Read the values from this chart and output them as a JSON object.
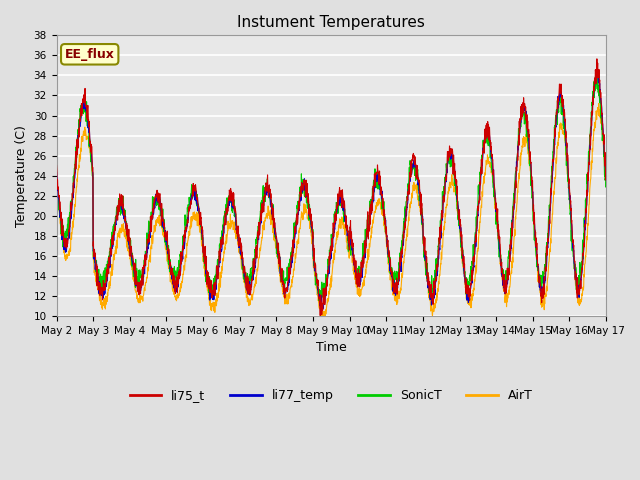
{
  "title": "Instument Temperatures",
  "xlabel": "Time",
  "ylabel": "Temperature (C)",
  "ylim": [
    10,
    38
  ],
  "yticks": [
    10,
    12,
    14,
    16,
    18,
    20,
    22,
    24,
    26,
    28,
    30,
    32,
    34,
    36,
    38
  ],
  "annotation": "EE_flux",
  "series_colors": {
    "li75_t": "#cc0000",
    "li77_temp": "#0000cc",
    "SonicT": "#00cc00",
    "AirT": "#ffaa00"
  },
  "legend_colors": [
    "#cc0000",
    "#0000cc",
    "#00cc00",
    "#ffaa00"
  ],
  "legend_labels": [
    "li75_t",
    "li77_temp",
    "SonicT",
    "AirT"
  ],
  "background_color": "#e0e0e0",
  "plot_bg_color": "#e8e8e8",
  "xtick_labels": [
    "May 2",
    "May 3",
    "May 4",
    "May 5",
    "May 6",
    "May 7",
    "May 8",
    "May 9",
    "May 10",
    "May 11",
    "May 12",
    "May 13",
    "May 14",
    "May 15",
    "May 16",
    "May 17"
  ],
  "num_days": 15,
  "points_per_day": 144
}
